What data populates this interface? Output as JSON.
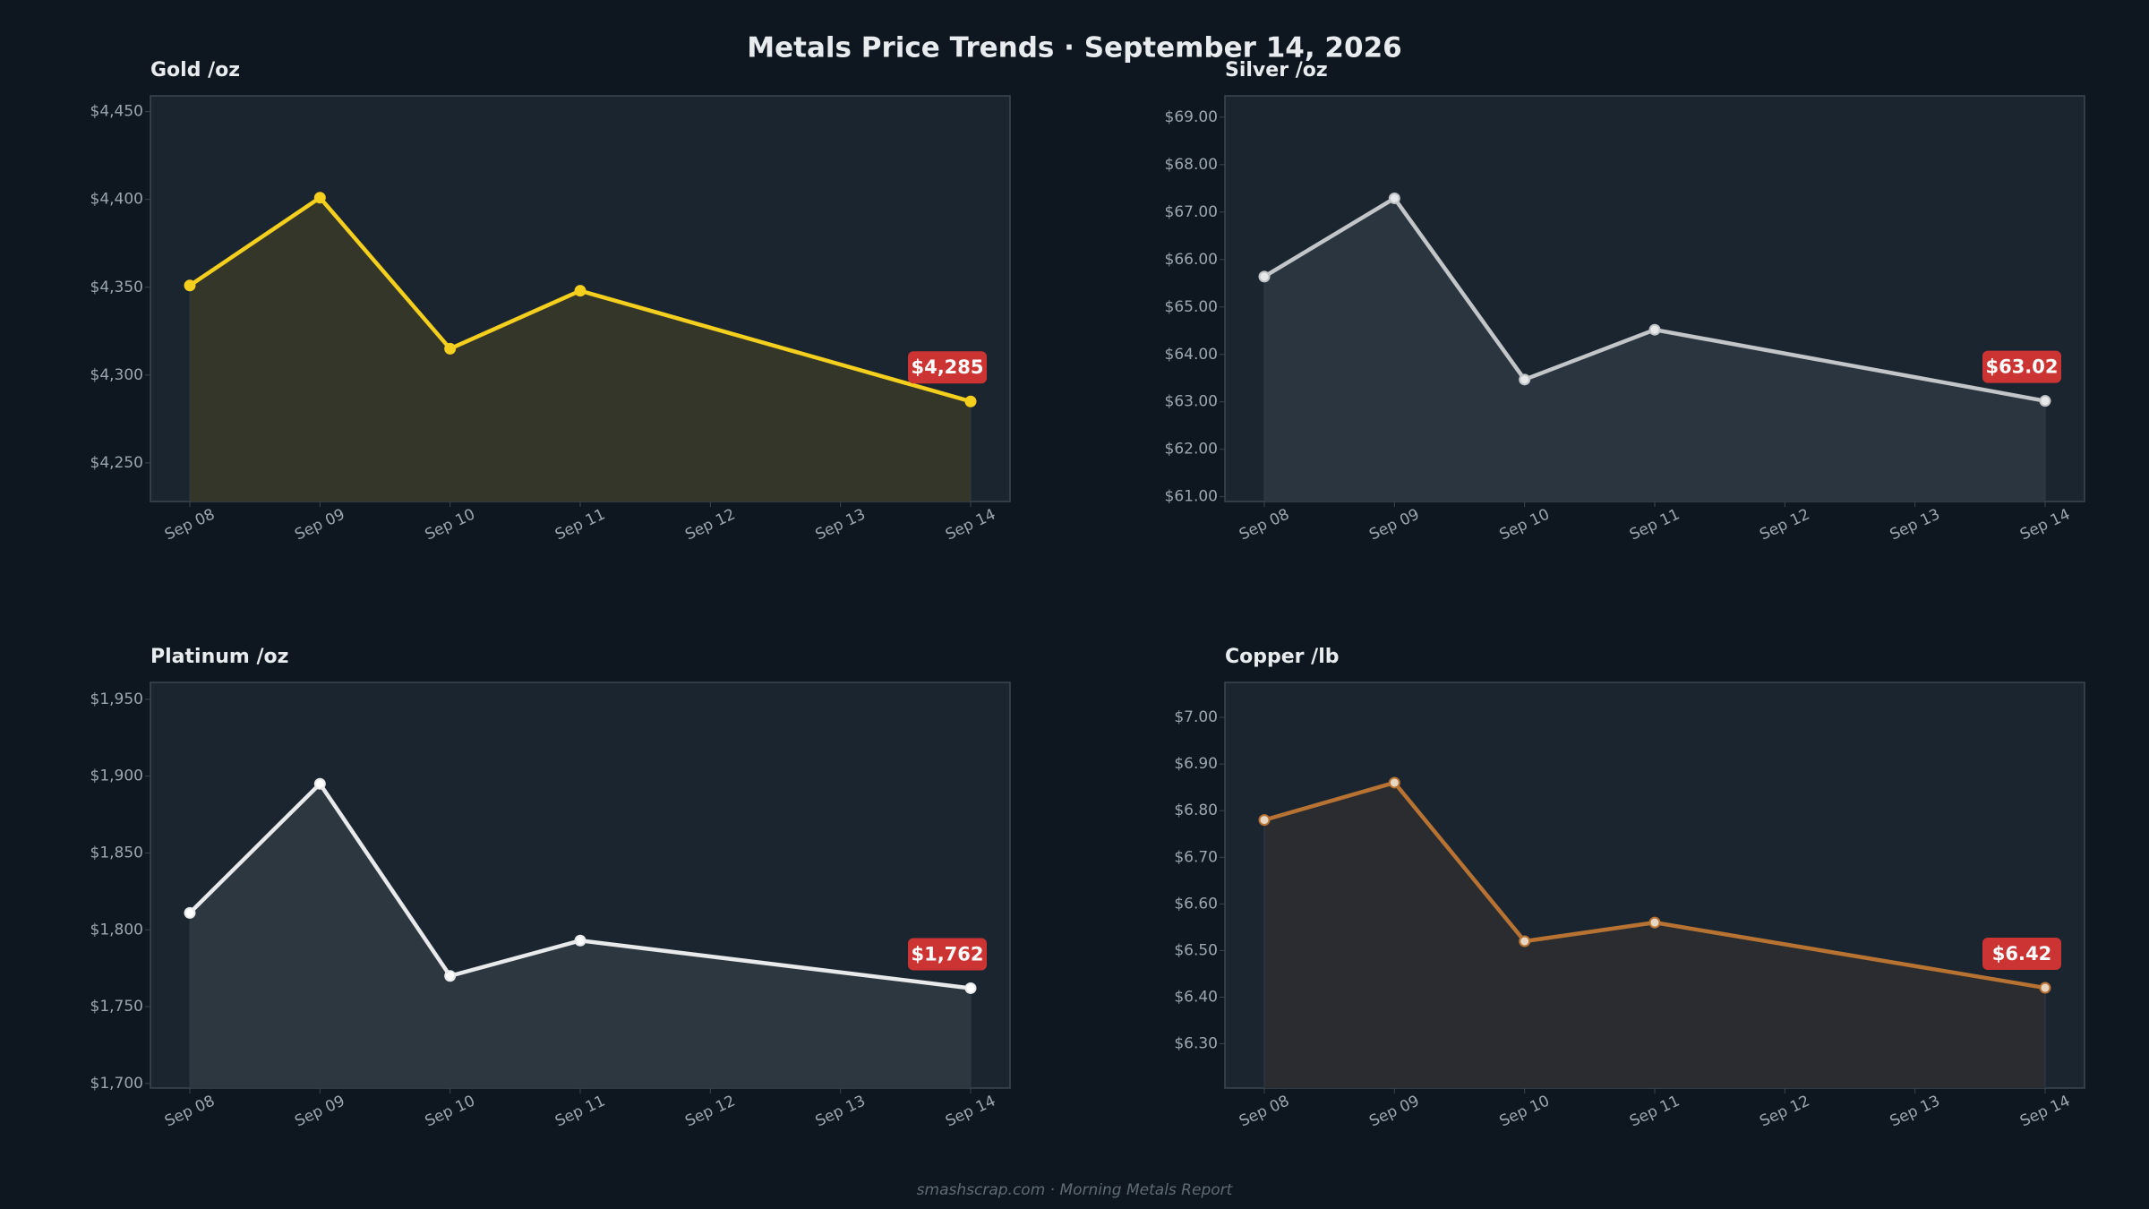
{
  "title": "Metals Price Trends  ·  September 14, 2026",
  "footer": "smashscrap.com  ·  Morning Metals Report",
  "chart_data": [
    {
      "type": "area",
      "title": "Gold  /oz",
      "x": [
        "Sep 08",
        "Sep 09",
        "Sep 10",
        "Sep 11",
        "Sep 12",
        "Sep 13",
        "Sep 14"
      ],
      "series": [
        {
          "x": [
            "Sep 08",
            "Sep 09",
            "Sep 10",
            "Sep 11",
            "Sep 14"
          ],
          "values": [
            4351,
            4401,
            4315,
            4348,
            4285
          ]
        }
      ],
      "ylim": [
        4228,
        4459
      ],
      "yticks": [
        4250,
        4300,
        4350,
        4400,
        4450
      ],
      "ytick_labels": [
        "$4,250",
        "$4,300",
        "$4,350",
        "$4,400",
        "$4,450"
      ],
      "latest_label": "$4,285",
      "line_color": "#f5cf1d",
      "fill_color": "#343629",
      "marker_fill": "#f5cf1d",
      "grid": false
    },
    {
      "type": "area",
      "title": "Silver  /oz",
      "x": [
        "Sep 08",
        "Sep 09",
        "Sep 10",
        "Sep 11",
        "Sep 12",
        "Sep 13",
        "Sep 14"
      ],
      "series": [
        {
          "x": [
            "Sep 08",
            "Sep 09",
            "Sep 10",
            "Sep 11",
            "Sep 14"
          ],
          "values": [
            65.64,
            67.29,
            63.47,
            64.52,
            63.02
          ]
        }
      ],
      "ylim": [
        60.9,
        69.45
      ],
      "yticks": [
        61,
        62,
        63,
        64,
        65,
        66,
        67,
        68,
        69
      ],
      "ytick_labels": [
        "$61.00",
        "$62.00",
        "$63.00",
        "$64.00",
        "$65.00",
        "$66.00",
        "$67.00",
        "$68.00",
        "$69.00"
      ],
      "latest_label": "$63.02",
      "line_color": "#c3c6c9",
      "fill_color": "#2b3540",
      "marker_fill": "#e6e8ea",
      "grid": false
    },
    {
      "type": "area",
      "title": "Platinum  /oz",
      "x": [
        "Sep 08",
        "Sep 09",
        "Sep 10",
        "Sep 11",
        "Sep 12",
        "Sep 13",
        "Sep 14"
      ],
      "series": [
        {
          "x": [
            "Sep 08",
            "Sep 09",
            "Sep 10",
            "Sep 11",
            "Sep 14"
          ],
          "values": [
            1811,
            1895,
            1770,
            1793,
            1762
          ]
        }
      ],
      "ylim": [
        1697,
        1961
      ],
      "yticks": [
        1700,
        1750,
        1800,
        1850,
        1900,
        1950
      ],
      "ytick_labels": [
        "$1,700",
        "$1,750",
        "$1,800",
        "$1,850",
        "$1,900",
        "$1,950"
      ],
      "latest_label": "$1,762",
      "line_color": "#e8eaec",
      "fill_color": "#2d3740",
      "marker_fill": "#ffffff",
      "grid": false
    },
    {
      "type": "area",
      "title": "Copper  /lb",
      "x": [
        "Sep 08",
        "Sep 09",
        "Sep 10",
        "Sep 11",
        "Sep 12",
        "Sep 13",
        "Sep 14"
      ],
      "series": [
        {
          "x": [
            "Sep 08",
            "Sep 09",
            "Sep 10",
            "Sep 11",
            "Sep 14"
          ],
          "values": [
            6.78,
            6.86,
            6.52,
            6.56,
            6.42
          ]
        }
      ],
      "ylim": [
        6.205,
        7.075
      ],
      "yticks": [
        6.3,
        6.4,
        6.5,
        6.6,
        6.7,
        6.8,
        6.9,
        7.0
      ],
      "ytick_labels": [
        "$6.30",
        "$6.40",
        "$6.50",
        "$6.60",
        "$6.70",
        "$6.80",
        "$6.90",
        "$7.00"
      ],
      "latest_label": "$6.42",
      "line_color": "#b87333",
      "fill_color": "#2b2c2f",
      "marker_fill": "#e8d6c4",
      "grid": false
    }
  ]
}
